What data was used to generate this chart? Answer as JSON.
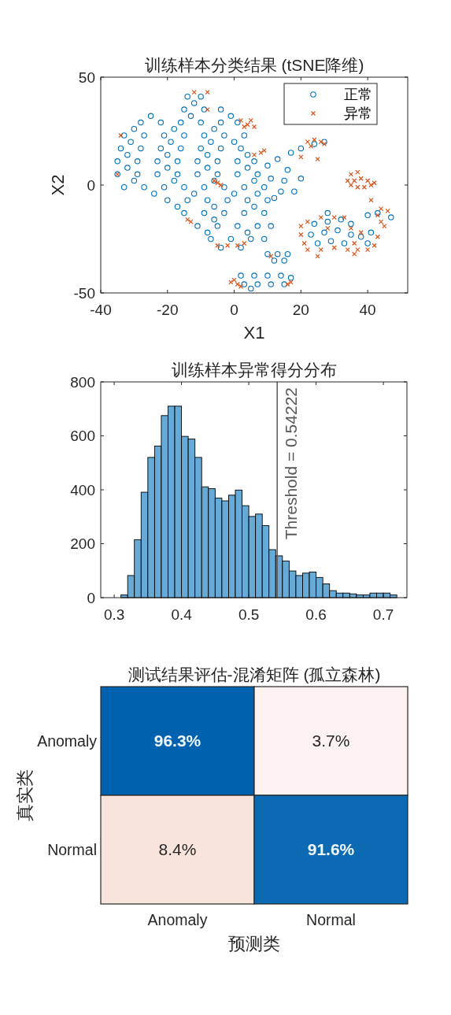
{
  "chart_data": [
    {
      "type": "scatter",
      "title": "训练样本分类结果 (tSNE降维)",
      "xlabel": "X1",
      "ylabel": "X2",
      "xlim": [
        -40,
        52
      ],
      "ylim": [
        -50,
        50
      ],
      "xticks": [
        -40,
        -20,
        0,
        20,
        40
      ],
      "yticks": [
        -50,
        0,
        50
      ],
      "legend": "top right",
      "series": [
        {
          "name": "正常",
          "color": "#0072bd",
          "marker": "circle",
          "x": [
            -14,
            -10,
            -15,
            -9,
            -4,
            -28,
            -22,
            -16,
            -10,
            -4,
            1,
            -33,
            -27,
            -21,
            -15,
            -9,
            -3,
            3,
            -34,
            -28,
            -22,
            -16,
            -10,
            -4,
            2,
            -35,
            -29,
            -23,
            -17,
            -11,
            -5,
            1,
            6,
            -35,
            -29,
            -23,
            -17,
            -11,
            -5,
            1,
            7,
            -33,
            -27,
            -21,
            -15,
            -9,
            -3,
            3,
            9,
            -20,
            -14,
            -8,
            -2,
            4,
            10,
            -15,
            -9,
            -3,
            3,
            9,
            -11,
            -5,
            1,
            7,
            11,
            -7,
            -1,
            5,
            9,
            -4,
            2,
            -12,
            -25,
            -13,
            -1,
            -30,
            -18,
            -6,
            -31,
            -19,
            -7,
            0,
            -32,
            -20,
            -8,
            4,
            -32,
            -20,
            -8,
            4,
            -30,
            -18,
            -6,
            6,
            -24,
            -12,
            0,
            7,
            -17,
            -6,
            6,
            -6,
            -8,
            4,
            10,
            13,
            17,
            20,
            24,
            27,
            11,
            15,
            14,
            18,
            12,
            16,
            20,
            24,
            28,
            32,
            35,
            23,
            27,
            31,
            35,
            25,
            29,
            33,
            38,
            40,
            41,
            28,
            40,
            43,
            47,
            10,
            13,
            16,
            12,
            15,
            2,
            6,
            10,
            14,
            17,
            3,
            7,
            11,
            15,
            5
          ],
          "values": [
            41,
            41,
            35,
            35,
            35,
            29,
            29,
            29,
            29,
            29,
            29,
            23,
            23,
            23,
            23,
            23,
            23,
            23,
            17,
            17,
            17,
            17,
            17,
            17,
            17,
            11,
            11,
            11,
            11,
            11,
            11,
            11,
            11,
            5,
            5,
            5,
            5,
            5,
            5,
            5,
            5,
            -1,
            -1,
            -1,
            -1,
            -1,
            -1,
            -1,
            -1,
            -7,
            -7,
            -7,
            -7,
            -7,
            -7,
            -13,
            -13,
            -13,
            -13,
            -13,
            -19,
            -19,
            -19,
            -19,
            -19,
            -25,
            -25,
            -25,
            -25,
            -29,
            -29,
            38,
            32,
            32,
            32,
            26,
            26,
            26,
            20,
            20,
            20,
            20,
            14,
            14,
            14,
            14,
            8,
            8,
            8,
            8,
            2,
            2,
            2,
            2,
            -4,
            -4,
            -4,
            -4,
            -10,
            -10,
            -10,
            -16,
            -22,
            -22,
            9,
            12,
            15,
            17,
            19,
            20,
            3,
            2,
            -3,
            -3,
            -6,
            7,
            3,
            -18,
            -17,
            -16,
            -18,
            -23,
            -22,
            -21,
            -23,
            -27,
            -26,
            -27,
            -24,
            -27,
            -22,
            -13,
            -14,
            -13,
            -15,
            -32,
            -32,
            -32,
            -35,
            -35,
            -42,
            -42,
            -42,
            -42,
            -43,
            -46,
            -46,
            -46,
            -46,
            -48
          ]
        },
        {
          "name": "异常",
          "color": "#d95319",
          "marker": "cross",
          "x": [
            -5,
            -4,
            -6,
            2,
            4,
            5,
            3,
            6,
            -14,
            -13,
            -5,
            -2,
            1,
            3,
            -12,
            -8,
            -8,
            6,
            8,
            9,
            -35,
            -34,
            22,
            24,
            26,
            27,
            23,
            20,
            25,
            35,
            37,
            34,
            36,
            38,
            40,
            41,
            37,
            39,
            42,
            35,
            41,
            20,
            21,
            22,
            20,
            22,
            26,
            30,
            33,
            35,
            26,
            30,
            34,
            37,
            36,
            40,
            42,
            43,
            38,
            28,
            25,
            36,
            43,
            44,
            45,
            46,
            44,
            11,
            -1,
            0,
            1,
            2,
            16,
            17
          ],
          "values": [
            1,
            0,
            2,
            30,
            28,
            30,
            27,
            27,
            -16,
            -17,
            -28,
            -28,
            -28,
            -27,
            43,
            43,
            35,
            14,
            15,
            16,
            5,
            23,
            20,
            21,
            20,
            19,
            18,
            13,
            12,
            5,
            6,
            2,
            2,
            3,
            2,
            0,
            -1,
            -1,
            1,
            0,
            -7,
            -23,
            -27,
            -30,
            -19,
            -17,
            -15,
            -15,
            -15,
            -20,
            -30,
            -29,
            -30,
            -30,
            -27,
            -30,
            -28,
            -24,
            -22,
            -20,
            -33,
            -32,
            -14,
            -17,
            -19,
            -12,
            -11,
            -33,
            -45,
            -44,
            -46,
            -47,
            -46,
            -45
          ]
        }
      ]
    },
    {
      "type": "histogram",
      "title": "训练样本异常得分分布",
      "color": "#66aad7",
      "xlim": [
        0.28,
        0.735
      ],
      "ylim": [
        0,
        800
      ],
      "xticks": [
        0.3,
        0.4,
        0.5,
        0.6,
        0.7
      ],
      "yticks": [
        0,
        200,
        400,
        600,
        800
      ],
      "bins": [
        0.31,
        0.32,
        0.33,
        0.34,
        0.35,
        0.36,
        0.37,
        0.38,
        0.39,
        0.4,
        0.41,
        0.42,
        0.43,
        0.44,
        0.45,
        0.46,
        0.47,
        0.48,
        0.49,
        0.5,
        0.51,
        0.52,
        0.53,
        0.54,
        0.55,
        0.56,
        0.57,
        0.58,
        0.59,
        0.6,
        0.61,
        0.62,
        0.63,
        0.64,
        0.65,
        0.66,
        0.67,
        0.68,
        0.69,
        0.7,
        0.71,
        0.72
      ],
      "values": [
        10,
        82,
        215,
        391,
        520,
        562,
        675,
        710,
        710,
        598,
        588,
        520,
        411,
        404,
        369,
        359,
        380,
        399,
        341,
        301,
        310,
        267,
        178,
        155,
        136,
        99,
        82,
        91,
        95,
        75,
        51,
        26,
        17,
        17,
        14,
        10,
        10,
        17,
        17,
        17,
        10
      ],
      "ref_lines": [
        {
          "axis": "x",
          "value": 0.54222,
          "label": "Threshold = 0.54222",
          "color": "#595959"
        }
      ]
    },
    {
      "type": "heatmap",
      "title": "测试结果评估-混淆矩阵 (孤立森林)",
      "xlabel": "预测类",
      "ylabel": "真实类",
      "categories": [
        "Anomaly",
        "Normal"
      ],
      "y_categories": [
        "Anomaly",
        "Normal"
      ],
      "cells": [
        [
          96.3,
          3.7
        ],
        [
          8.4,
          91.6
        ]
      ],
      "cell_labels": [
        [
          "96.3%",
          "3.7%"
        ],
        [
          "8.4%",
          "91.6%"
        ]
      ],
      "colors": [
        "#0062ae",
        "#f9e4dc"
      ]
    }
  ]
}
